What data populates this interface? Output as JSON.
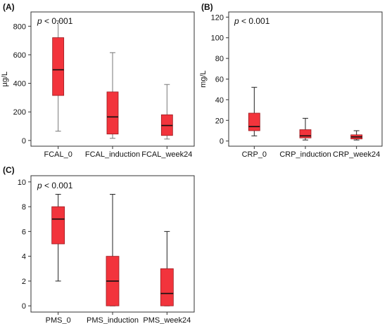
{
  "chart_data": [
    {
      "type": "box",
      "panel_label": "(A)",
      "annotation": "< 0.001",
      "annotation_italic": "p",
      "ylabel": "µg/L",
      "ylim": [
        -40,
        900
      ],
      "yticks": [
        0,
        200,
        400,
        600,
        800
      ],
      "categories": [
        "FCAL_0",
        "FCAL_induction",
        "FCAL_week24"
      ],
      "boxes": [
        {
          "min": 65,
          "q1": 315,
          "median": 495,
          "q3": 720,
          "max": 838
        },
        {
          "min": 15,
          "q1": 45,
          "median": 165,
          "q3": 340,
          "max": 615
        },
        {
          "min": 10,
          "q1": 35,
          "median": 105,
          "q3": 180,
          "max": 392
        }
      ],
      "box_color": "#f2343c",
      "whisker_style": "line"
    },
    {
      "type": "box",
      "panel_label": "(B)",
      "annotation": "< 0.001",
      "annotation_italic": "p",
      "ylabel": "mg/L",
      "ylim": [
        -5,
        125
      ],
      "yticks": [
        0,
        20,
        40,
        60,
        80,
        100,
        120
      ],
      "categories": [
        "CRP_0",
        "CRP_induction",
        "CRP_week24"
      ],
      "boxes": [
        {
          "min": 5,
          "q1": 10,
          "median": 14,
          "q3": 27,
          "max": 52
        },
        {
          "min": 1,
          "q1": 3,
          "median": 5,
          "q3": 11,
          "max": 22
        },
        {
          "min": 1,
          "q1": 2,
          "median": 4,
          "q3": 6,
          "max": 10
        }
      ],
      "box_color": "#f2343c",
      "whisker_style": "capped"
    },
    {
      "type": "box",
      "panel_label": "(C)",
      "annotation": "< 0.001",
      "annotation_italic": "p",
      "ylabel": "",
      "ylim": [
        -0.5,
        10.5
      ],
      "yticks": [
        0,
        2,
        4,
        6,
        8,
        10
      ],
      "categories": [
        "PMS_0",
        "PMS_induction",
        "PMS_week24"
      ],
      "boxes": [
        {
          "min": 2,
          "q1": 5,
          "median": 7,
          "q3": 8,
          "max": 9
        },
        {
          "min": 0,
          "q1": 0,
          "median": 2,
          "q3": 4,
          "max": 9
        },
        {
          "min": 0,
          "q1": 0,
          "median": 1,
          "q3": 3,
          "max": 6
        }
      ],
      "box_color": "#f2343c",
      "whisker_style": "capped"
    }
  ]
}
